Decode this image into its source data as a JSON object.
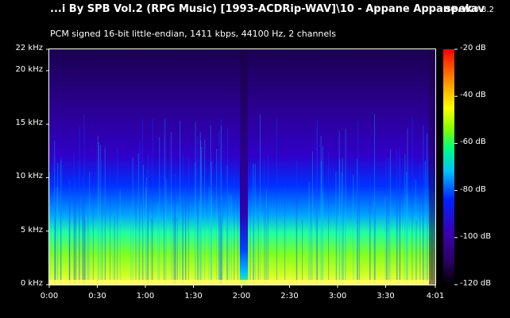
{
  "header": {
    "file_title": "...i By SPB Vol.2 (RPG Music) [1993-ACDRip-WAV]\\10 - Appane Appane.wav",
    "app_name": "spek",
    "app_version": "0.8.2",
    "audio_info": "PCM signed 16-bit little-endian, 1411 kbps, 44100 Hz, 2 channels"
  },
  "chart_data": {
    "type": "heatmap",
    "x_ticks": [
      "0:00",
      "0:30",
      "1:00",
      "1:30",
      "2:00",
      "2:30",
      "3:00",
      "3:30",
      "4:01"
    ],
    "x_tick_seconds": [
      0,
      30,
      60,
      90,
      120,
      150,
      180,
      210,
      241
    ],
    "duration_seconds": 241,
    "y_ticks": [
      "0 kHz",
      "5 kHz",
      "10 kHz",
      "15 kHz",
      "20 kHz",
      "22 kHz"
    ],
    "y_tick_khz": [
      0,
      5,
      10,
      15,
      20,
      22
    ],
    "ylim_khz": [
      0,
      22
    ],
    "colorbar_ticks": [
      "-20 dB",
      "-40 dB",
      "-60 dB",
      "-80 dB",
      "-100 dB",
      "-120 dB"
    ],
    "colorbar_db": [
      -20,
      -40,
      -60,
      -80,
      -100,
      -120
    ],
    "dynamic_range_db": [
      -120,
      -20
    ],
    "background_color": "#000000",
    "colormap": [
      "#000000",
      "#2a0060",
      "#3a00b0",
      "#0020ff",
      "#00c0ff",
      "#00ff80",
      "#80ff00",
      "#ffff00",
      "#ff8000",
      "#ff0000"
    ]
  }
}
